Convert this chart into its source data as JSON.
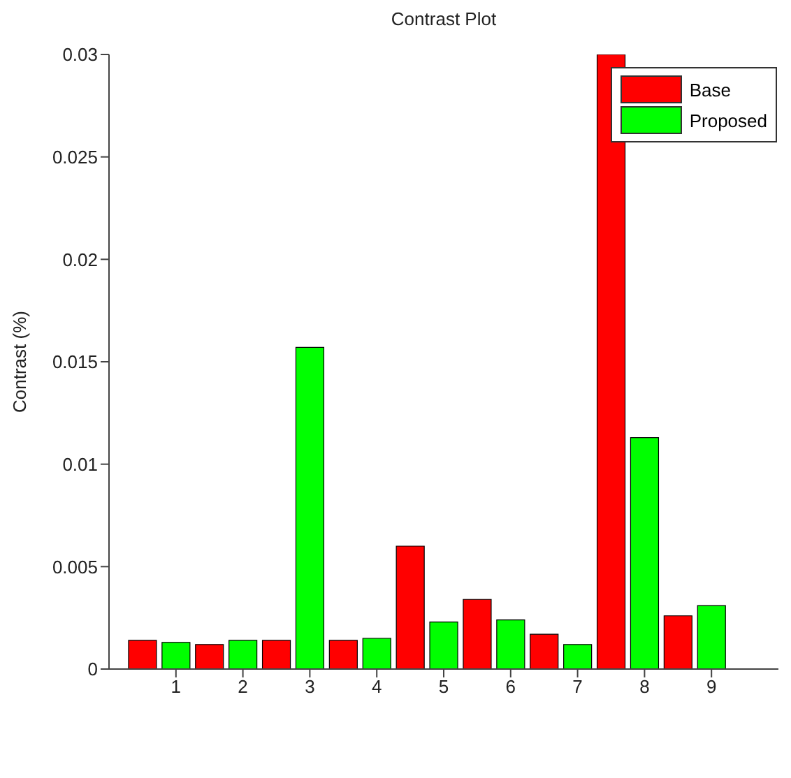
{
  "chart_data": {
    "type": "bar",
    "title": "Contrast Plot",
    "ylabel": "Contrast (%)",
    "series": [
      {
        "name": "Base",
        "color": "#ff0000",
        "x": [
          0.5,
          1.5,
          2.5,
          3.5,
          4.5,
          5.5,
          6.5,
          7.5,
          8.5
        ],
        "values": [
          0.0014,
          0.0012,
          0.0014,
          0.0014,
          0.006,
          0.0034,
          0.0017,
          0.03,
          0.0026
        ]
      },
      {
        "name": "Proposed",
        "color": "#00ff00",
        "x": [
          1,
          2,
          3,
          4,
          5,
          6,
          7,
          8,
          9
        ],
        "values": [
          0.0013,
          0.0014,
          0.0157,
          0.0015,
          0.0023,
          0.0024,
          0.0012,
          0.0113,
          0.0031
        ]
      }
    ],
    "xlim": [
      0,
      10
    ],
    "xticks": [
      1,
      2,
      3,
      4,
      5,
      6,
      7,
      8,
      9
    ],
    "ylim": [
      0,
      0.03
    ],
    "yticks": [
      0,
      0.005,
      0.01,
      0.015,
      0.02,
      0.025,
      0.03
    ],
    "grid": false,
    "legend": "top right"
  }
}
